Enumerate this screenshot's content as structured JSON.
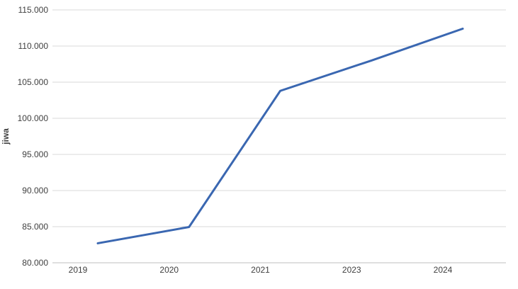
{
  "chart_data": {
    "type": "line",
    "title": "",
    "xlabel": "",
    "ylabel": "jiwa",
    "categories": [
      "2019",
      "2020",
      "2021",
      "2023",
      "2024"
    ],
    "series": [
      {
        "values": [
          82700,
          84950,
          103800,
          108000,
          112400
        ],
        "color": "#3a67b1"
      }
    ],
    "ylim": [
      80000,
      115000
    ],
    "yticks": [
      80000,
      85000,
      90000,
      95000,
      100000,
      105000,
      110000,
      115000
    ],
    "ytick_labels": [
      "80.000",
      "85.000",
      "90.000",
      "95.000",
      "100.000",
      "105.000",
      "110.000",
      "115.000"
    ],
    "grid": true,
    "legend": "none"
  }
}
